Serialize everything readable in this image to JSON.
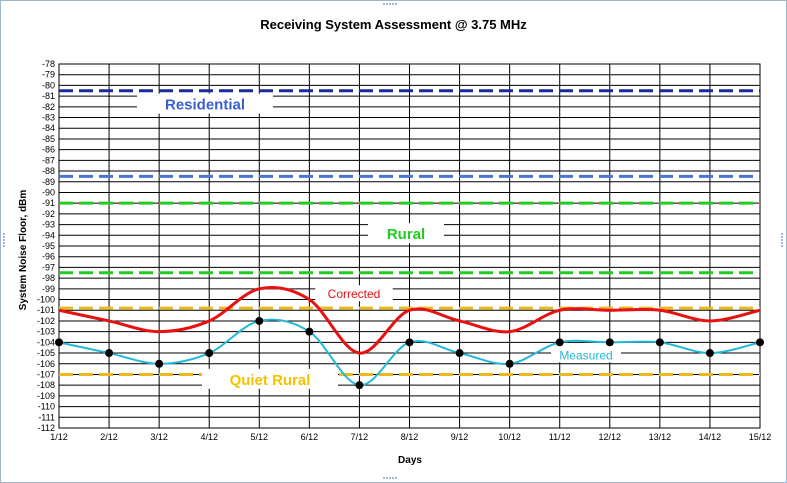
{
  "chart_data": {
    "type": "line",
    "title": "Receiving System Assessment @ 3.75  MHz",
    "xlabel": "Days",
    "ylabel": "System Noise Floor, dBm",
    "ylim": [
      -112,
      -78
    ],
    "grid": true,
    "categories": [
      "1/12",
      "2/12",
      "3/12",
      "4/12",
      "5/12",
      "6/12",
      "7/12",
      "8/12",
      "9/12",
      "10/12",
      "11/12",
      "12/12",
      "13/12",
      "14/12",
      "15/12"
    ],
    "series": [
      {
        "name": "Corrected",
        "color": "#e81010",
        "values": [
          -101,
          -102,
          -103,
          -102,
          -99,
          -100,
          -105,
          -101,
          -102,
          -103,
          -101,
          -101,
          -101,
          -102,
          -101
        ]
      },
      {
        "name": "Measured",
        "color": "#22b8d8",
        "values": [
          -104,
          -105,
          -106,
          -105,
          -102,
          -103,
          -108,
          -104,
          -105,
          -106,
          -104,
          -104,
          -104,
          -105,
          -104
        ]
      }
    ],
    "reference_lines": [
      {
        "value": -80.5,
        "color": "#1a2a9e",
        "label": "Residential",
        "label_color": "#3a5fd0"
      },
      {
        "value": -88.5,
        "color": "#4a74d8",
        "label": ""
      },
      {
        "value": -91,
        "color": "#22cc22",
        "label": "Rural",
        "label_color": "#22cc22"
      },
      {
        "value": -97.5,
        "color": "#22cc22",
        "label": ""
      },
      {
        "value": -100.8,
        "color": "#ecb820",
        "label": ""
      },
      {
        "value": -107,
        "color": "#ecb820",
        "label": "Quiet Rural",
        "label_color": "#f2c200"
      }
    ]
  }
}
